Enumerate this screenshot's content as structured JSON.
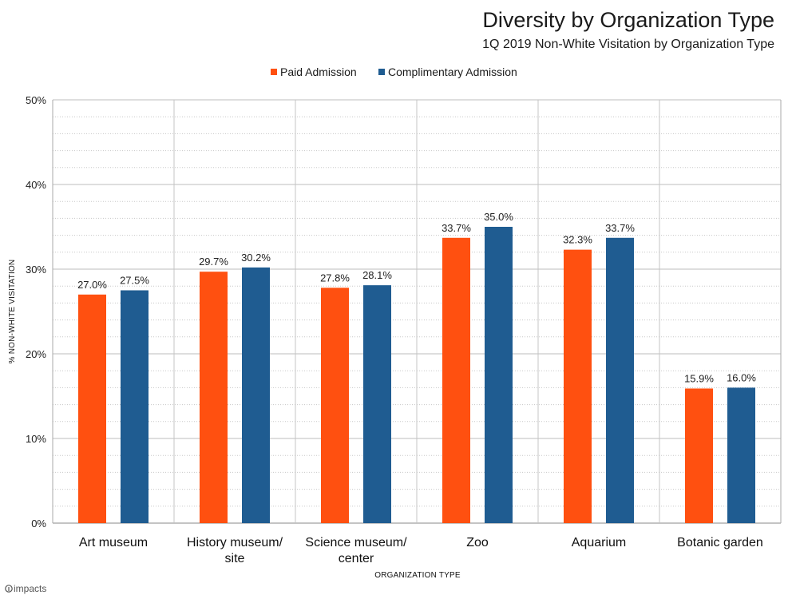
{
  "chart_data": {
    "type": "bar",
    "title": "Diversity by Organization Type",
    "subtitle": "1Q 2019 Non-White Visitation by Organization Type",
    "xlabel": "ORGANIZATION TYPE",
    "ylabel": "% NON-WHITE VISITATION",
    "ylim": [
      0,
      50
    ],
    "yticks": [
      0,
      10,
      20,
      30,
      40,
      50
    ],
    "ytick_labels": [
      "0%",
      "10%",
      "20%",
      "30%",
      "40%",
      "50%"
    ],
    "grid": true,
    "legend_position": "top-center",
    "categories": [
      [
        "Art museum"
      ],
      [
        "History museum/",
        "site"
      ],
      [
        "Science museum/",
        "center"
      ],
      [
        "Zoo"
      ],
      [
        "Aquarium"
      ],
      [
        "Botanic garden"
      ]
    ],
    "series": [
      {
        "name": "Paid Admission",
        "color": "#FF5010",
        "values": [
          27.0,
          29.7,
          27.8,
          33.7,
          32.3,
          15.9
        ],
        "labels": [
          "27.0%",
          "29.7%",
          "27.8%",
          "33.7%",
          "32.3%",
          "15.9%"
        ]
      },
      {
        "name": "Complimentary Admission",
        "color": "#1F5C91",
        "values": [
          27.5,
          30.2,
          28.1,
          35.0,
          33.7,
          16.0
        ],
        "labels": [
          "27.5%",
          "30.2%",
          "28.1%",
          "35.0%",
          "33.7%",
          "16.0%"
        ]
      }
    ]
  },
  "branding": {
    "logo_text": "impacts"
  }
}
